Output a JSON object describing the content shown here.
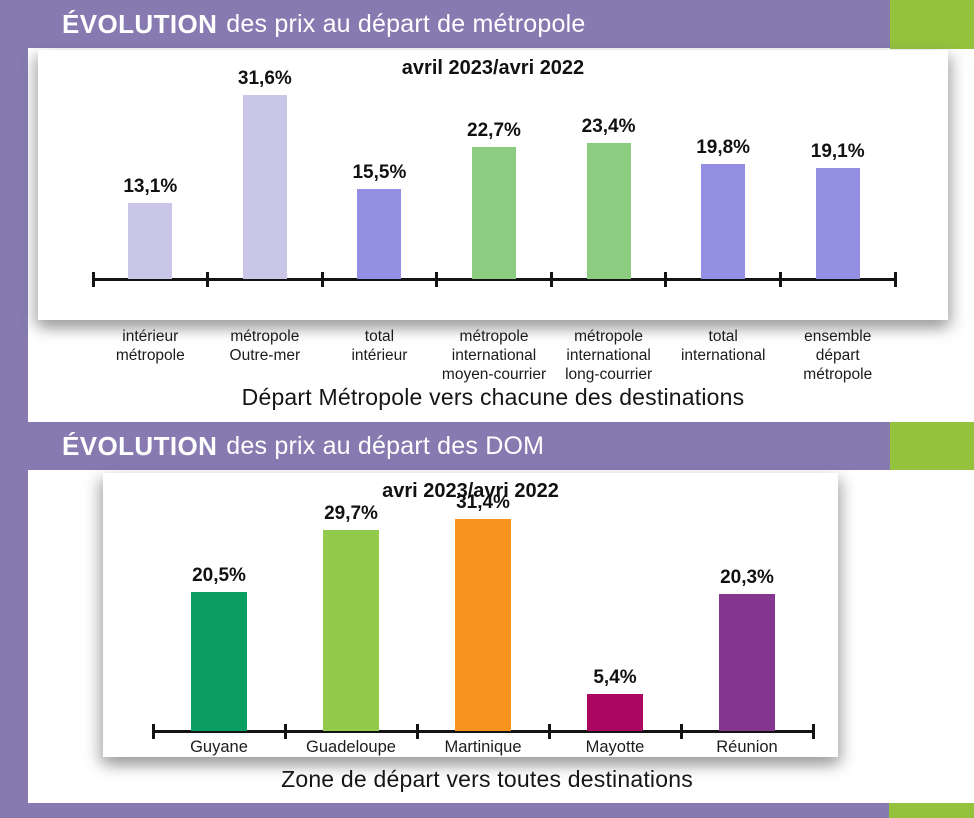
{
  "palette": {
    "purple": "#867ab1",
    "green": "#94c23d",
    "axis": "#141414"
  },
  "sections": [
    {
      "title_bold": "ÉVOLUTION",
      "title_rest": "des prix au départ de métropole",
      "subtitle": "avril 2023/avri 2022",
      "xlabel": "Départ Métropole vers chacune des destinations"
    },
    {
      "title_bold": "ÉVOLUTION",
      "title_rest": "des prix au départ des DOM",
      "subtitle": "avri 2023/avri 2022",
      "xlabel": "Zone de départ vers toutes destinations"
    }
  ],
  "chart_data": [
    {
      "type": "bar",
      "title": "avril 2023/avri 2022",
      "categories": [
        "intérieur\nmétropole",
        "métropole\nOutre-mer",
        "total\nintérieur",
        "métropole\ninternational\nmoyen-courrier",
        "métropole\ninternational\nlong-courrier",
        "total\ninternational",
        "ensemble\ndépart\nmétropole"
      ],
      "values": [
        13.1,
        31.6,
        15.5,
        22.7,
        23.4,
        19.8,
        19.1
      ],
      "value_labels": [
        "13,1%",
        "31,6%",
        "15,5%",
        "22,7%",
        "23,4%",
        "19,8%",
        "19,1%"
      ],
      "bar_colors": [
        "#c9c6e7",
        "#c9c6e7",
        "#938fe2",
        "#8ccc80",
        "#8ccc80",
        "#938fe2",
        "#938fe2"
      ],
      "xlabel": "Départ Métropole vers chacune des destinations",
      "ylabel": "",
      "ylim": [
        0,
        35
      ],
      "unit": "%",
      "grid": false,
      "legend": "none"
    },
    {
      "type": "bar",
      "title": "avri 2023/avri 2022",
      "categories": [
        "Guyane",
        "Guadeloupe",
        "Martinique",
        "Mayotte",
        "Réunion"
      ],
      "values": [
        20.5,
        29.7,
        31.4,
        5.4,
        20.3
      ],
      "value_labels": [
        "20,5%",
        "29,7%",
        "31,4%",
        "5,4%",
        "20,3%"
      ],
      "bar_colors": [
        "#0b9e61",
        "#92cb4b",
        "#f7941e",
        "#ab0762",
        "#85378f"
      ],
      "xlabel": "Zone de départ vers toutes destinations",
      "ylabel": "",
      "ylim": [
        0,
        35
      ],
      "unit": "%",
      "grid": false,
      "legend": "none"
    }
  ]
}
